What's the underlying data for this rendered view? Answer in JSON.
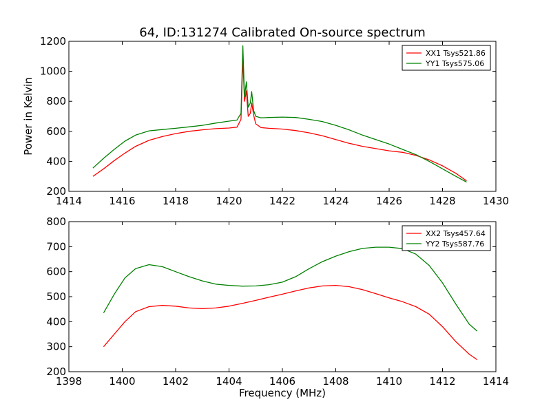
{
  "figure": {
    "title": "64, ID:131274 Calibrated On-source spectrum"
  },
  "colors": {
    "xx": "#ff0000",
    "yy": "#008000",
    "axes": "#000000",
    "background": "#ffffff"
  },
  "chart_data": [
    {
      "type": "line",
      "title": "64, ID:131274 Calibrated On-source spectrum",
      "xlabel": "",
      "ylabel": "Power in Kelvin",
      "xlim": [
        1414,
        1430
      ],
      "ylim": [
        200,
        1200
      ],
      "xticks": [
        1414,
        1416,
        1418,
        1420,
        1422,
        1424,
        1426,
        1428,
        1430
      ],
      "yticks": [
        200,
        400,
        600,
        800,
        1000,
        1200
      ],
      "grid": false,
      "legend_position": "top-right",
      "series": [
        {
          "name": "XX1 Tsys521.86",
          "color": "#ff0000",
          "x": [
            1414.9,
            1415.3,
            1415.7,
            1416.1,
            1416.5,
            1417.0,
            1417.5,
            1418.0,
            1418.5,
            1419.0,
            1419.5,
            1420.0,
            1420.3,
            1420.45,
            1420.52,
            1420.58,
            1420.65,
            1420.72,
            1420.8,
            1420.85,
            1420.92,
            1421.0,
            1421.2,
            1421.5,
            1422.0,
            1422.5,
            1423.0,
            1423.5,
            1424.0,
            1424.5,
            1425.0,
            1425.5,
            1426.0,
            1426.5,
            1427.0,
            1427.5,
            1428.0,
            1428.5,
            1428.9
          ],
          "y": [
            300,
            350,
            405,
            455,
            500,
            540,
            565,
            585,
            600,
            610,
            618,
            622,
            628,
            680,
            1090,
            800,
            870,
            700,
            720,
            790,
            710,
            650,
            625,
            620,
            615,
            605,
            590,
            570,
            545,
            520,
            500,
            485,
            470,
            460,
            440,
            410,
            370,
            320,
            270
          ]
        },
        {
          "name": "YY1 Tsys575.06",
          "color": "#008000",
          "x": [
            1414.9,
            1415.3,
            1415.7,
            1416.1,
            1416.5,
            1417.0,
            1417.5,
            1418.0,
            1418.5,
            1419.0,
            1419.5,
            1420.0,
            1420.3,
            1420.45,
            1420.52,
            1420.58,
            1420.65,
            1420.72,
            1420.8,
            1420.85,
            1420.92,
            1421.0,
            1421.2,
            1421.5,
            1422.0,
            1422.5,
            1423.0,
            1423.5,
            1424.0,
            1424.5,
            1425.0,
            1425.5,
            1426.0,
            1426.5,
            1427.0,
            1427.5,
            1428.0,
            1428.5,
            1428.9
          ],
          "y": [
            355,
            420,
            480,
            535,
            575,
            603,
            612,
            620,
            630,
            640,
            655,
            668,
            675,
            720,
            1170,
            830,
            930,
            760,
            790,
            865,
            740,
            700,
            690,
            692,
            695,
            692,
            680,
            665,
            640,
            610,
            575,
            545,
            515,
            480,
            445,
            400,
            350,
            300,
            262
          ]
        }
      ]
    },
    {
      "type": "line",
      "title": "",
      "xlabel": "Frequency (MHz)",
      "ylabel": "",
      "xlim": [
        1398,
        1414
      ],
      "ylim": [
        200,
        800
      ],
      "xticks": [
        1398,
        1400,
        1402,
        1404,
        1406,
        1408,
        1410,
        1412,
        1414
      ],
      "yticks": [
        200,
        300,
        400,
        500,
        600,
        700,
        800
      ],
      "grid": false,
      "legend_position": "top-right",
      "series": [
        {
          "name": "XX2 Tsys457.64",
          "color": "#ff0000",
          "x": [
            1399.3,
            1399.7,
            1400.1,
            1400.5,
            1401.0,
            1401.5,
            1402.0,
            1402.5,
            1403.0,
            1403.5,
            1404.0,
            1404.5,
            1405.0,
            1405.5,
            1406.0,
            1406.5,
            1407.0,
            1407.5,
            1408.0,
            1408.5,
            1409.0,
            1409.5,
            1410.0,
            1410.5,
            1411.0,
            1411.5,
            1412.0,
            1412.5,
            1413.0,
            1413.3
          ],
          "y": [
            300,
            350,
            400,
            440,
            460,
            465,
            462,
            455,
            452,
            455,
            462,
            473,
            485,
            498,
            510,
            523,
            535,
            543,
            545,
            540,
            528,
            512,
            495,
            480,
            460,
            430,
            380,
            320,
            270,
            248
          ]
        },
        {
          "name": "YY2 Tsys587.76",
          "color": "#008000",
          "x": [
            1399.3,
            1399.7,
            1400.1,
            1400.5,
            1401.0,
            1401.5,
            1402.0,
            1402.5,
            1403.0,
            1403.5,
            1404.0,
            1404.5,
            1405.0,
            1405.5,
            1406.0,
            1406.5,
            1407.0,
            1407.5,
            1408.0,
            1408.5,
            1409.0,
            1409.5,
            1410.0,
            1410.5,
            1411.0,
            1411.5,
            1412.0,
            1412.5,
            1413.0,
            1413.3
          ],
          "y": [
            435,
            510,
            575,
            612,
            628,
            620,
            600,
            580,
            563,
            550,
            545,
            542,
            543,
            548,
            558,
            580,
            612,
            640,
            662,
            680,
            693,
            698,
            698,
            692,
            670,
            625,
            555,
            470,
            390,
            362
          ]
        }
      ]
    }
  ]
}
